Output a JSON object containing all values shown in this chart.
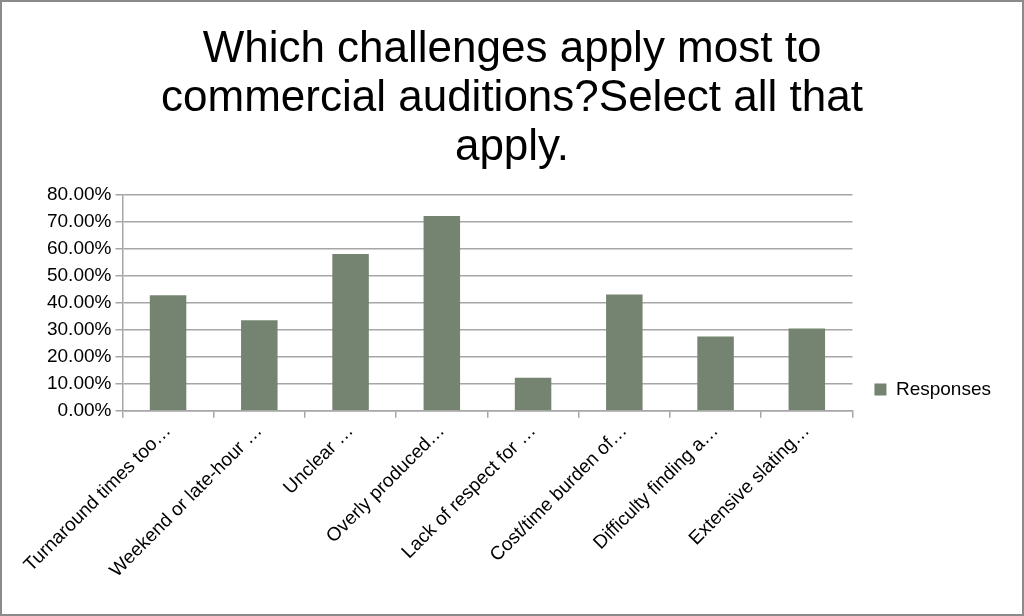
{
  "chart_data": {
    "type": "bar",
    "title": "Which challenges apply most to commercial auditions?Select all that apply.",
    "categories": [
      "Turnaround times too…",
      "Weekend or late-hour …",
      "Unclear …",
      "Overly produced…",
      "Lack of respect for …",
      "Cost/time burden of…",
      "Difficulty finding a…",
      "Extensive slating…"
    ],
    "series": [
      {
        "name": "Responses",
        "color": "#748470",
        "values": [
          42.8,
          33.6,
          58.1,
          72.2,
          12.2,
          43.1,
          27.5,
          30.5
        ]
      }
    ],
    "ylim": [
      0,
      80
    ],
    "yticks": [
      {
        "value": 0,
        "label": "0.00%"
      },
      {
        "value": 10,
        "label": "10.00%"
      },
      {
        "value": 20,
        "label": "20.00%"
      },
      {
        "value": 30,
        "label": "30.00%"
      },
      {
        "value": 40,
        "label": "40.00%"
      },
      {
        "value": 50,
        "label": "50.00%"
      },
      {
        "value": 60,
        "label": "60.00%"
      },
      {
        "value": 70,
        "label": "70.00%"
      },
      {
        "value": 80,
        "label": "80.00%"
      }
    ],
    "grid": "y",
    "legend": "right"
  }
}
